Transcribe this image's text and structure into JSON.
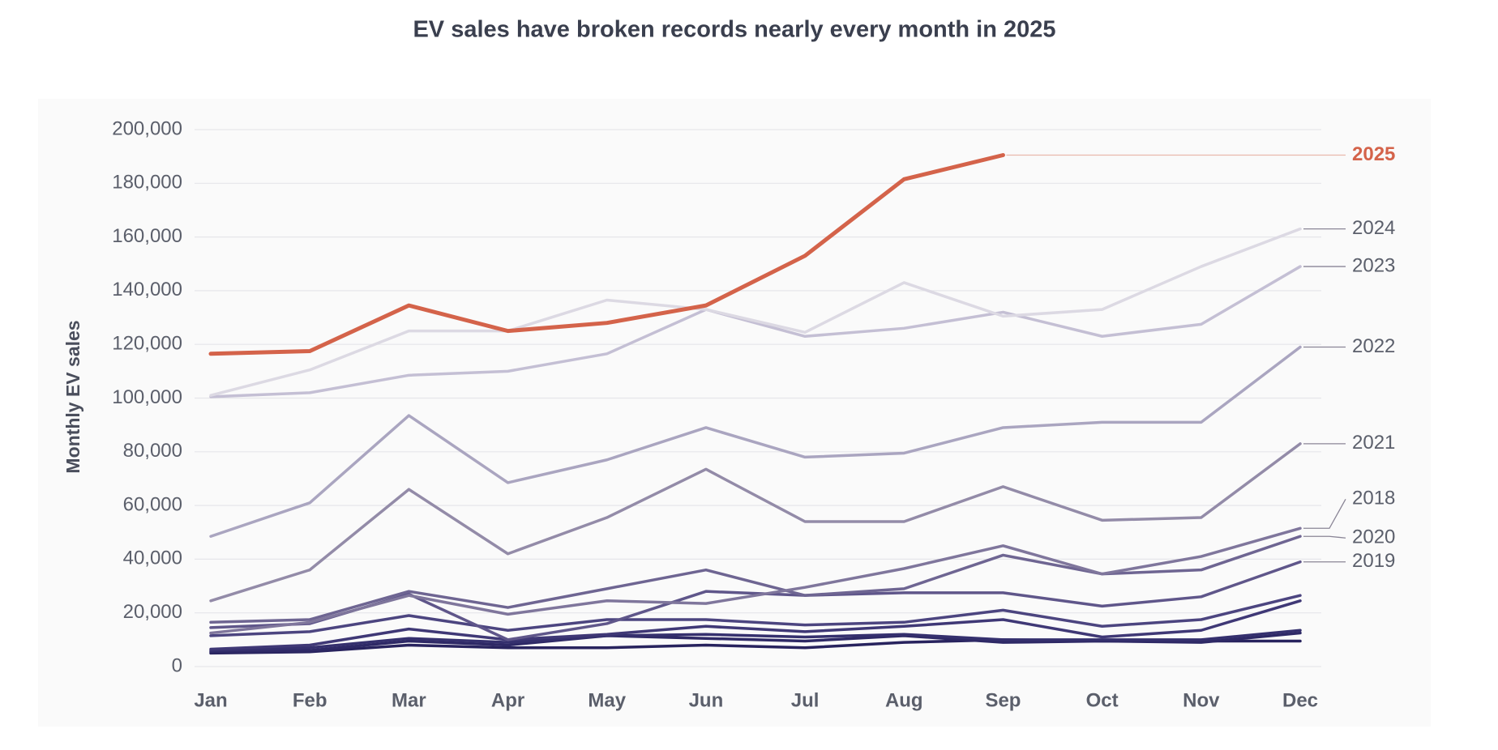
{
  "chart_data": {
    "type": "line",
    "title": "EV sales have broken records nearly every month in 2025",
    "y_label": "Monthly EV sales",
    "categories": [
      "Jan",
      "Feb",
      "Mar",
      "Apr",
      "May",
      "Jun",
      "Jul",
      "Aug",
      "Sep",
      "Oct",
      "Nov",
      "Dec"
    ],
    "ylim": [
      0,
      200000
    ],
    "yticks": [
      0,
      {
        "value": 20000,
        "label": "20,000"
      },
      {
        "value": 40000,
        "label": "40,000"
      },
      {
        "value": 60000,
        "label": "60,000"
      },
      {
        "value": 80000,
        "label": "80,000"
      },
      {
        "value": 100000,
        "label": "100,000"
      },
      {
        "value": 120000,
        "label": "120,000"
      },
      {
        "value": 140000,
        "label": "140,000"
      },
      {
        "value": 160000,
        "label": "160,000"
      },
      {
        "value": 180000,
        "label": "180,000"
      },
      {
        "value": 200000,
        "label": "200,000"
      }
    ],
    "grid": true,
    "series": [
      {
        "color": "#28235e",
        "values": [
          5000,
          5500,
          8000,
          7000,
          7000,
          8000,
          7000,
          9000,
          10000,
          9500,
          9500,
          9500
        ]
      },
      {
        "color": "#2e2966",
        "values": [
          5500,
          6000,
          9500,
          8000,
          11500,
          10500,
          9500,
          11500,
          9000,
          9500,
          9000,
          12500
        ]
      },
      {
        "color": "#35306e",
        "values": [
          6000,
          7000,
          10500,
          9000,
          11500,
          12000,
          11000,
          12000,
          10000,
          10000,
          10000,
          13500
        ]
      },
      {
        "color": "#3f3876",
        "values": [
          6500,
          8000,
          14000,
          10000,
          12000,
          15000,
          13000,
          15000,
          17500,
          11000,
          13500,
          24500
        ]
      },
      {
        "color": "#4c4580",
        "values": [
          11500,
          13000,
          19000,
          13500,
          17500,
          17500,
          15500,
          16500,
          21000,
          15000,
          17500,
          26500
        ]
      },
      {
        "name": "2019",
        "color": "#5f568a",
        "values": [
          14500,
          16000,
          27000,
          10000,
          16000,
          28000,
          26500,
          27500,
          27500,
          22500,
          26000,
          39000
        ]
      },
      {
        "name": "2020",
        "color": "#6e6592",
        "values": [
          16500,
          17500,
          28000,
          22000,
          29000,
          36000,
          26500,
          29000,
          41500,
          34500,
          36000,
          48500
        ]
      },
      {
        "name": "2018",
        "color": "#7f769c",
        "values": [
          12500,
          16500,
          26500,
          19500,
          24500,
          23500,
          29500,
          36500,
          45000,
          34500,
          41000,
          51500
        ]
      },
      {
        "name": "2021",
        "color": "#938ba8",
        "values": [
          24500,
          36000,
          66000,
          42000,
          55500,
          73500,
          54000,
          54000,
          67000,
          54500,
          55500,
          83000
        ]
      },
      {
        "name": "2022",
        "color": "#aaa5c0",
        "values": [
          48500,
          61000,
          93500,
          68500,
          77000,
          89000,
          78000,
          79500,
          89000,
          91000,
          91000,
          119000
        ]
      },
      {
        "name": "2023",
        "color": "#c4bfd4",
        "values": [
          100500,
          102000,
          108500,
          110000,
          116500,
          133000,
          123000,
          126000,
          132000,
          123000,
          127500,
          149000
        ]
      },
      {
        "name": "2024",
        "color": "#dcd9e3",
        "values": [
          101000,
          110500,
          125000,
          125000,
          136500,
          133000,
          124500,
          143000,
          130500,
          133000,
          149000,
          163000
        ]
      },
      {
        "name": "2025",
        "color": "#d4634a",
        "values": [
          116500,
          117500,
          134500,
          125000,
          128000,
          134500,
          153000,
          181500,
          190500,
          null,
          null,
          null
        ]
      }
    ]
  }
}
